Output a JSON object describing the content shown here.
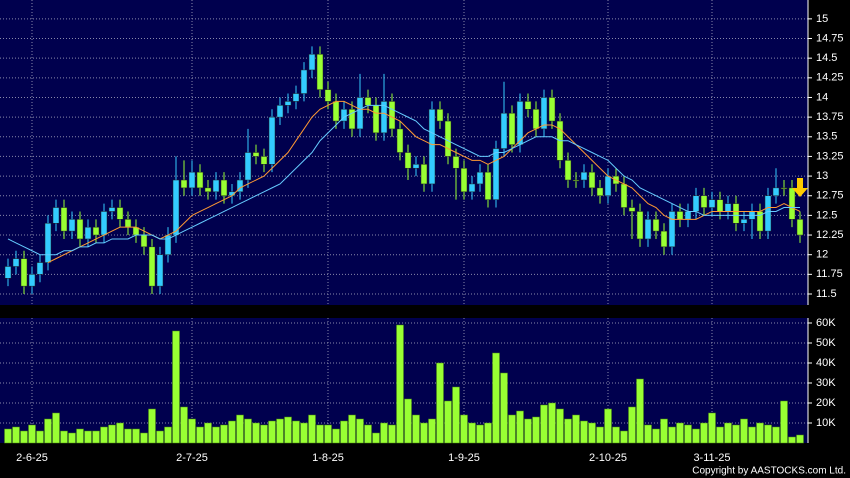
{
  "chart_data": [
    {
      "type": "candlestick",
      "categories": [
        null,
        null,
        null,
        "2-6-25",
        null,
        null,
        null,
        null,
        null,
        null,
        null,
        null,
        null,
        null,
        null,
        null,
        null,
        null,
        null,
        null,
        null,
        null,
        null,
        "2-7-25",
        null,
        null,
        null,
        null,
        null,
        null,
        null,
        null,
        null,
        null,
        null,
        null,
        null,
        null,
        null,
        null,
        "1-8-25",
        null,
        null,
        null,
        null,
        null,
        null,
        null,
        null,
        null,
        null,
        null,
        null,
        null,
        null,
        null,
        null,
        "1-9-25",
        null,
        null,
        null,
        null,
        null,
        null,
        null,
        null,
        null,
        null,
        null,
        null,
        null,
        null,
        null,
        null,
        null,
        "2-10-25",
        null,
        null,
        null,
        null,
        null,
        null,
        null,
        null,
        null,
        null,
        null,
        null,
        "3-11-25",
        null,
        null,
        null,
        null,
        null,
        null,
        null,
        null,
        null,
        null,
        null
      ],
      "open": [
        11.7,
        11.85,
        11.95,
        11.6,
        11.75,
        11.9,
        12.4,
        12.6,
        12.3,
        12.45,
        12.2,
        12.35,
        12.25,
        12.55,
        12.6,
        12.45,
        12.35,
        12.25,
        12.1,
        11.6,
        12.0,
        12.25,
        12.95,
        12.85,
        13.05,
        12.85,
        12.8,
        12.95,
        12.75,
        12.8,
        12.95,
        13.3,
        13.25,
        13.15,
        13.75,
        13.9,
        13.95,
        14.05,
        14.35,
        14.55,
        14.1,
        13.95,
        13.7,
        13.85,
        13.6,
        14.0,
        13.9,
        13.55,
        13.95,
        13.6,
        13.3,
        13.1,
        13.15,
        12.9,
        13.85,
        13.7,
        13.25,
        13.1,
        12.8,
        12.9,
        13.05,
        12.7,
        13.35,
        13.8,
        13.4,
        13.95,
        13.85,
        13.6,
        14.0,
        13.7,
        13.2,
        12.95,
        12.95,
        13.05,
        12.85,
        12.75,
        13.0,
        12.9,
        12.6,
        12.55,
        12.2,
        12.45,
        12.3,
        12.1,
        12.55,
        12.45,
        12.55,
        12.75,
        12.6,
        12.7,
        12.55,
        12.65,
        12.4,
        12.45,
        12.55,
        12.3,
        12.75,
        12.85,
        12.85,
        12.45
      ],
      "high": [
        11.95,
        12.05,
        12.05,
        11.85,
        12.0,
        12.5,
        12.7,
        12.7,
        12.55,
        12.55,
        12.45,
        12.45,
        12.65,
        12.7,
        12.7,
        12.55,
        12.45,
        12.35,
        12.2,
        12.1,
        12.35,
        13.25,
        13.2,
        13.2,
        13.15,
        12.95,
        13.05,
        13.05,
        12.9,
        13.05,
        13.6,
        13.4,
        13.35,
        13.85,
        14.0,
        14.05,
        14.15,
        14.45,
        14.65,
        14.65,
        14.2,
        14.05,
        13.95,
        13.95,
        14.3,
        14.1,
        14.0,
        14.3,
        14.05,
        13.7,
        13.4,
        13.25,
        13.25,
        13.95,
        13.95,
        13.8,
        13.35,
        13.2,
        13.0,
        13.15,
        13.15,
        13.45,
        14.2,
        13.9,
        14.05,
        14.05,
        13.95,
        14.1,
        14.1,
        13.8,
        13.3,
        13.05,
        13.15,
        13.15,
        12.95,
        13.1,
        13.1,
        13.0,
        12.7,
        12.65,
        12.55,
        12.55,
        12.4,
        12.65,
        12.65,
        12.65,
        12.85,
        12.85,
        12.8,
        12.8,
        12.75,
        12.75,
        12.55,
        12.65,
        12.65,
        12.85,
        13.1,
        12.95,
        12.95,
        12.55
      ],
      "low": [
        11.6,
        11.75,
        11.5,
        11.5,
        11.65,
        11.8,
        12.3,
        12.2,
        12.2,
        12.1,
        12.1,
        12.15,
        12.15,
        12.45,
        12.35,
        12.25,
        12.15,
        12.0,
        11.5,
        11.5,
        11.9,
        12.15,
        12.75,
        12.75,
        12.75,
        12.7,
        12.7,
        12.65,
        12.65,
        12.7,
        12.85,
        13.15,
        13.05,
        13.05,
        13.65,
        13.8,
        13.85,
        13.95,
        14.25,
        14.0,
        13.85,
        13.6,
        13.6,
        13.5,
        13.5,
        13.8,
        13.45,
        13.45,
        13.5,
        13.2,
        12.95,
        13.0,
        12.8,
        12.8,
        13.6,
        13.15,
        12.7,
        12.7,
        12.7,
        12.8,
        12.6,
        12.6,
        13.25,
        13.3,
        13.3,
        13.75,
        13.5,
        13.5,
        13.6,
        13.1,
        12.85,
        12.85,
        12.85,
        12.75,
        12.65,
        12.65,
        12.8,
        12.5,
        12.2,
        12.1,
        12.1,
        12.2,
        12.0,
        12.0,
        12.35,
        12.35,
        12.45,
        12.5,
        12.5,
        12.45,
        12.45,
        12.3,
        12.3,
        12.2,
        12.2,
        12.2,
        12.65,
        12.75,
        12.35,
        12.15
      ],
      "close": [
        11.85,
        11.95,
        11.6,
        11.75,
        11.9,
        12.4,
        12.6,
        12.3,
        12.45,
        12.2,
        12.35,
        12.25,
        12.55,
        12.6,
        12.45,
        12.35,
        12.25,
        12.1,
        11.6,
        12.0,
        12.25,
        12.95,
        12.85,
        13.05,
        12.85,
        12.8,
        12.95,
        12.75,
        12.8,
        12.95,
        13.3,
        13.25,
        13.15,
        13.75,
        13.9,
        13.95,
        14.05,
        14.35,
        14.55,
        14.1,
        13.95,
        13.7,
        13.85,
        13.6,
        14.0,
        13.9,
        13.55,
        13.95,
        13.6,
        13.3,
        13.1,
        13.15,
        12.9,
        13.85,
        13.7,
        13.25,
        13.1,
        12.8,
        12.9,
        13.05,
        12.7,
        13.35,
        13.8,
        13.4,
        13.95,
        13.85,
        13.6,
        14.0,
        13.7,
        13.2,
        12.95,
        12.95,
        13.05,
        12.85,
        12.75,
        13.0,
        12.9,
        12.6,
        12.55,
        12.2,
        12.45,
        12.3,
        12.1,
        12.55,
        12.45,
        12.55,
        12.75,
        12.6,
        12.7,
        12.55,
        12.65,
        12.4,
        12.45,
        12.55,
        12.3,
        12.75,
        12.85,
        12.85,
        12.45,
        12.25
      ],
      "up_color": "#33ccff",
      "down_color": "#99ff33",
      "series": [
        {
          "color": "#ff9933",
          "values": [
            null,
            null,
            null,
            null,
            null,
            11.9,
            11.95,
            12.0,
            12.05,
            12.1,
            12.15,
            12.2,
            12.25,
            12.3,
            12.35,
            12.35,
            12.35,
            12.3,
            12.25,
            12.2,
            12.25,
            12.3,
            12.4,
            12.5,
            12.55,
            12.6,
            12.65,
            12.7,
            12.75,
            12.85,
            12.9,
            12.95,
            13.0,
            13.1,
            13.2,
            13.3,
            13.45,
            13.6,
            13.75,
            13.85,
            13.9,
            13.95,
            13.95,
            13.9,
            13.85,
            13.85,
            13.8,
            13.8,
            13.75,
            13.7,
            13.6,
            13.5,
            13.45,
            13.4,
            13.4,
            13.35,
            13.3,
            13.25,
            13.2,
            13.2,
            13.15,
            13.2,
            13.25,
            13.35,
            13.45,
            13.55,
            13.6,
            13.65,
            13.65,
            13.6,
            13.5,
            13.4,
            13.3,
            13.2,
            13.1,
            13.0,
            12.95,
            12.9,
            12.85,
            12.75,
            12.65,
            12.6,
            12.5,
            12.45,
            12.45,
            12.45,
            12.45,
            12.5,
            12.55,
            12.55,
            12.55,
            12.55,
            12.55,
            12.55,
            12.55,
            12.6,
            12.6,
            12.65,
            12.6,
            12.55
          ]
        },
        {
          "color": "#66ccff",
          "values": [
            12.2,
            12.15,
            12.1,
            12.05,
            12.0,
            12.0,
            12.0,
            12.05,
            12.05,
            12.1,
            12.1,
            12.15,
            12.15,
            12.2,
            12.2,
            12.2,
            12.25,
            12.25,
            12.25,
            12.2,
            12.2,
            12.25,
            12.3,
            12.35,
            12.4,
            12.45,
            12.5,
            12.55,
            12.6,
            12.65,
            12.7,
            12.75,
            12.8,
            12.85,
            12.9,
            13.0,
            13.1,
            13.2,
            13.3,
            13.45,
            13.55,
            13.65,
            13.75,
            13.8,
            13.85,
            13.9,
            13.9,
            13.9,
            13.85,
            13.8,
            13.75,
            13.7,
            13.6,
            13.55,
            13.5,
            13.45,
            13.4,
            13.35,
            13.3,
            13.25,
            13.25,
            13.3,
            13.3,
            13.35,
            13.4,
            13.45,
            13.5,
            13.5,
            13.5,
            13.45,
            13.45,
            13.4,
            13.35,
            13.3,
            13.25,
            13.2,
            13.1,
            13.0,
            12.95,
            12.85,
            12.8,
            12.75,
            12.7,
            12.65,
            12.6,
            12.55,
            12.55,
            12.5,
            12.5,
            12.5,
            12.5,
            12.5,
            12.5,
            12.5,
            12.5,
            12.55,
            12.55,
            12.6,
            12.6,
            12.6
          ]
        }
      ],
      "ylim": [
        11.36,
        15.24
      ],
      "yticks": [
        11.5,
        11.75,
        12,
        12.25,
        12.5,
        12.75,
        13,
        13.25,
        13.5,
        13.75,
        14,
        14.25,
        14.5,
        14.75,
        15
      ],
      "grid": true
    },
    {
      "type": "bar",
      "values": [
        7000,
        8000,
        6000,
        9000,
        6000,
        12000,
        15000,
        6000,
        5000,
        7000,
        6000,
        6000,
        8000,
        9000,
        10000,
        7000,
        7000,
        5000,
        17000,
        6000,
        8000,
        56000,
        18000,
        12000,
        8000,
        10000,
        8000,
        9000,
        11000,
        14000,
        12000,
        10000,
        9000,
        11000,
        12000,
        13000,
        11000,
        10000,
        14000,
        9000,
        9000,
        7000,
        11000,
        14000,
        12000,
        9000,
        5000,
        10000,
        9000,
        59000,
        22000,
        14000,
        10000,
        12000,
        40000,
        21000,
        28000,
        14000,
        10000,
        9000,
        10000,
        45000,
        35000,
        14000,
        16000,
        12000,
        13000,
        19000,
        20000,
        17000,
        12000,
        14000,
        11000,
        10000,
        8000,
        17000,
        8000,
        6000,
        18000,
        32000,
        9000,
        7000,
        12000,
        8000,
        10000,
        9000,
        7000,
        10000,
        15000,
        8000,
        10000,
        9000,
        12000,
        8000,
        10000,
        9000,
        8000,
        21000,
        3000,
        4000
      ],
      "color": "#99ff33",
      "ylim": [
        0,
        62500
      ],
      "yticks": [
        {
          "value": 10000,
          "label": "10K"
        },
        {
          "value": 20000,
          "label": "20K"
        },
        {
          "value": 30000,
          "label": "30K"
        },
        {
          "value": 40000,
          "label": "40K"
        },
        {
          "value": 50000,
          "label": "50K"
        },
        {
          "value": 60000,
          "label": "60K"
        }
      ],
      "grid": true
    }
  ],
  "copyright": "Copyright by AASTOCKS.com Ltd."
}
